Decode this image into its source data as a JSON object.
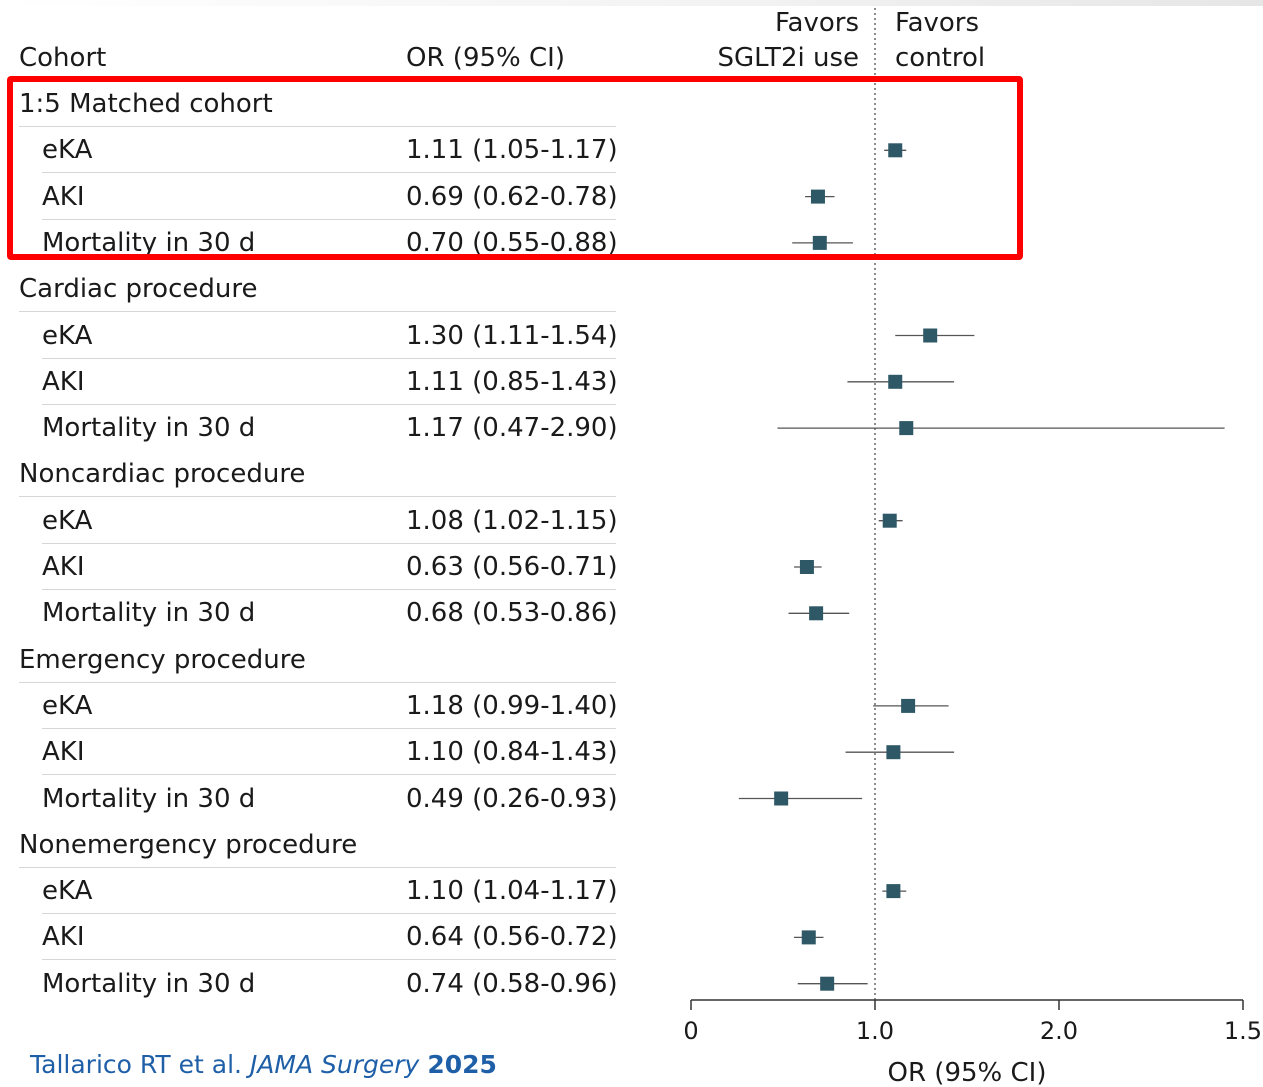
{
  "header": {
    "cohort_label": "Cohort",
    "or_label": "OR (95% CI)",
    "favors_left": [
      "Favors",
      "SGLT2i use"
    ],
    "favors_right": [
      "Favors",
      "control"
    ]
  },
  "chart_data": {
    "type": "forest",
    "reference_line": 1.0,
    "xlabel": "OR (95% CI)",
    "xtick_labels": [
      "0",
      "1.0",
      "2.0",
      "1.5"
    ],
    "colors": {
      "marker": "#2f5866",
      "whisker": "#555555",
      "reference": "#666666",
      "highlight": "#ff0000"
    },
    "groups": [
      {
        "name": "1:5 Matched cohort",
        "rows": [
          {
            "label": "eKA",
            "ci_text": "1.11 (1.05-1.17)",
            "or": 1.11,
            "lo": 1.05,
            "hi": 1.17
          },
          {
            "label": "AKI",
            "ci_text": "0.69 (0.62-0.78)",
            "or": 0.69,
            "lo": 0.62,
            "hi": 0.78
          },
          {
            "label": "Mortality in 30 d",
            "ci_text": "0.70 (0.55-0.88)",
            "or": 0.7,
            "lo": 0.55,
            "hi": 0.88
          }
        ]
      },
      {
        "name": "Cardiac procedure",
        "rows": [
          {
            "label": "eKA",
            "ci_text": "1.30 (1.11-1.54)",
            "or": 1.3,
            "lo": 1.11,
            "hi": 1.54
          },
          {
            "label": "AKI",
            "ci_text": "1.11 (0.85-1.43)",
            "or": 1.11,
            "lo": 0.85,
            "hi": 1.43
          },
          {
            "label": "Mortality in 30 d",
            "ci_text": "1.17 (0.47-2.90)",
            "or": 1.17,
            "lo": 0.47,
            "hi": 2.9
          }
        ]
      },
      {
        "name": "Noncardiac procedure",
        "rows": [
          {
            "label": "eKA",
            "ci_text": "1.08 (1.02-1.15)",
            "or": 1.08,
            "lo": 1.02,
            "hi": 1.15
          },
          {
            "label": "AKI",
            "ci_text": "0.63 (0.56-0.71)",
            "or": 0.63,
            "lo": 0.56,
            "hi": 0.71
          },
          {
            "label": "Mortality in 30 d",
            "ci_text": "0.68 (0.53-0.86)",
            "or": 0.68,
            "lo": 0.53,
            "hi": 0.86
          }
        ]
      },
      {
        "name": "Emergency procedure",
        "rows": [
          {
            "label": "eKA",
            "ci_text": "1.18 (0.99-1.40)",
            "or": 1.18,
            "lo": 0.99,
            "hi": 1.4
          },
          {
            "label": "AKI",
            "ci_text": "1.10 (0.84-1.43)",
            "or": 1.1,
            "lo": 0.84,
            "hi": 1.43
          },
          {
            "label": "Mortality in 30 d",
            "ci_text": "0.49 (0.26-0.93)",
            "or": 0.49,
            "lo": 0.26,
            "hi": 0.93
          }
        ]
      },
      {
        "name": "Nonemergency procedure",
        "rows": [
          {
            "label": "eKA",
            "ci_text": "1.10 (1.04-1.17)",
            "or": 1.1,
            "lo": 1.04,
            "hi": 1.17
          },
          {
            "label": "AKI",
            "ci_text": "0.64 (0.56-0.72)",
            "or": 0.64,
            "lo": 0.56,
            "hi": 0.72
          },
          {
            "label": "Mortality in 30 d",
            "ci_text": "0.74 (0.58-0.96)",
            "or": 0.74,
            "lo": 0.58,
            "hi": 0.96
          }
        ]
      }
    ],
    "highlighted_group": "1:5 Matched cohort"
  },
  "citation": {
    "authors": "Tallarico RT et al. ",
    "journal": "JAMA Surgery",
    "year": "2025"
  }
}
